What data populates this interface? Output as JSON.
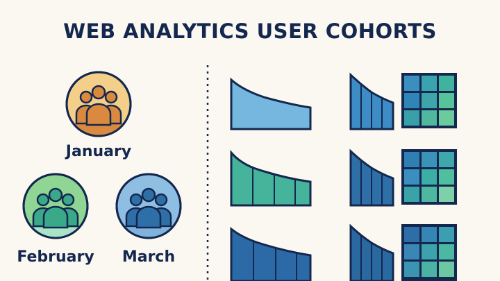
{
  "title": "WEB ANALYTICS USER COHORTS",
  "cohorts": [
    {
      "label": "January",
      "icon": "people-group-icon",
      "color": "#e8c07a",
      "fill": "#d98a3f"
    },
    {
      "label": "February",
      "icon": "people-group-icon",
      "color": "#7ccf86",
      "fill": "#3aa98a"
    },
    {
      "label": "March",
      "icon": "people-group-icon",
      "color": "#7fb2dc",
      "fill": "#2f6fa7"
    }
  ],
  "colors": {
    "ink": "#14274e",
    "background": "#fbf8f1"
  }
}
